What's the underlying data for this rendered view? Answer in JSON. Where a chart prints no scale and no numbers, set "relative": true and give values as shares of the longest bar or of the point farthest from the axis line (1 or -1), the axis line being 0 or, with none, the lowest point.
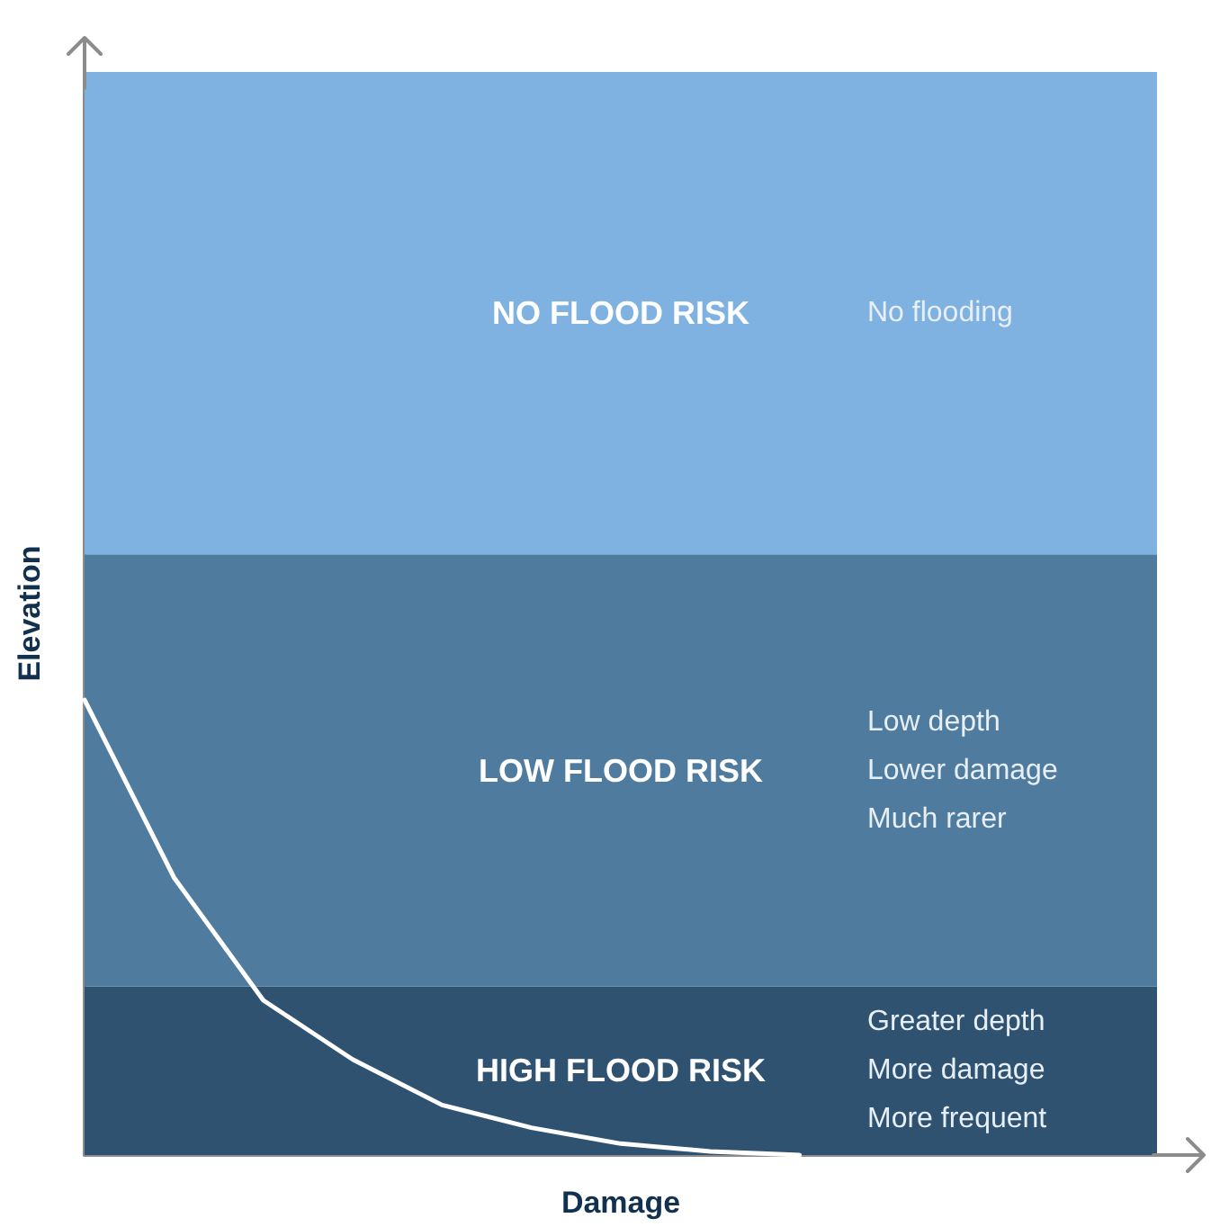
{
  "chart_data": {
    "type": "line",
    "relative": true,
    "xlabel": "Damage",
    "ylabel": "Elevation",
    "categories": [
      null,
      null,
      null,
      null,
      null,
      null,
      null,
      null,
      null,
      null,
      null,
      null,
      null
    ],
    "series": [
      {
        "color": "#ffffff",
        "values": [
          1,
          0.61,
          0.34,
          0.21,
          0.11,
          0.06,
          0.025,
          0.008,
          0,
          null,
          null,
          null,
          null
        ]
      }
    ],
    "bands": [
      {
        "axis": "y",
        "from": 0,
        "to": 0.37,
        "label": "HIGH FLOOD RISK",
        "color": "#2f5270"
      },
      {
        "axis": "y",
        "from": 0.37,
        "to": 1.32,
        "label": "LOW FLOOD RISK",
        "color": "#4f7b9e"
      },
      {
        "axis": "y",
        "from": 1.32,
        "to": 2.38,
        "label": "NO FLOOD RISK",
        "color": "#7fb2e0"
      }
    ],
    "annotations": [
      "Greater depth\nMore damage\nMore frequent",
      "Low depth\nLower damage\nMuch rarer",
      "No flooding"
    ],
    "grid": false,
    "marker": "none",
    "line_style": "solid"
  }
}
